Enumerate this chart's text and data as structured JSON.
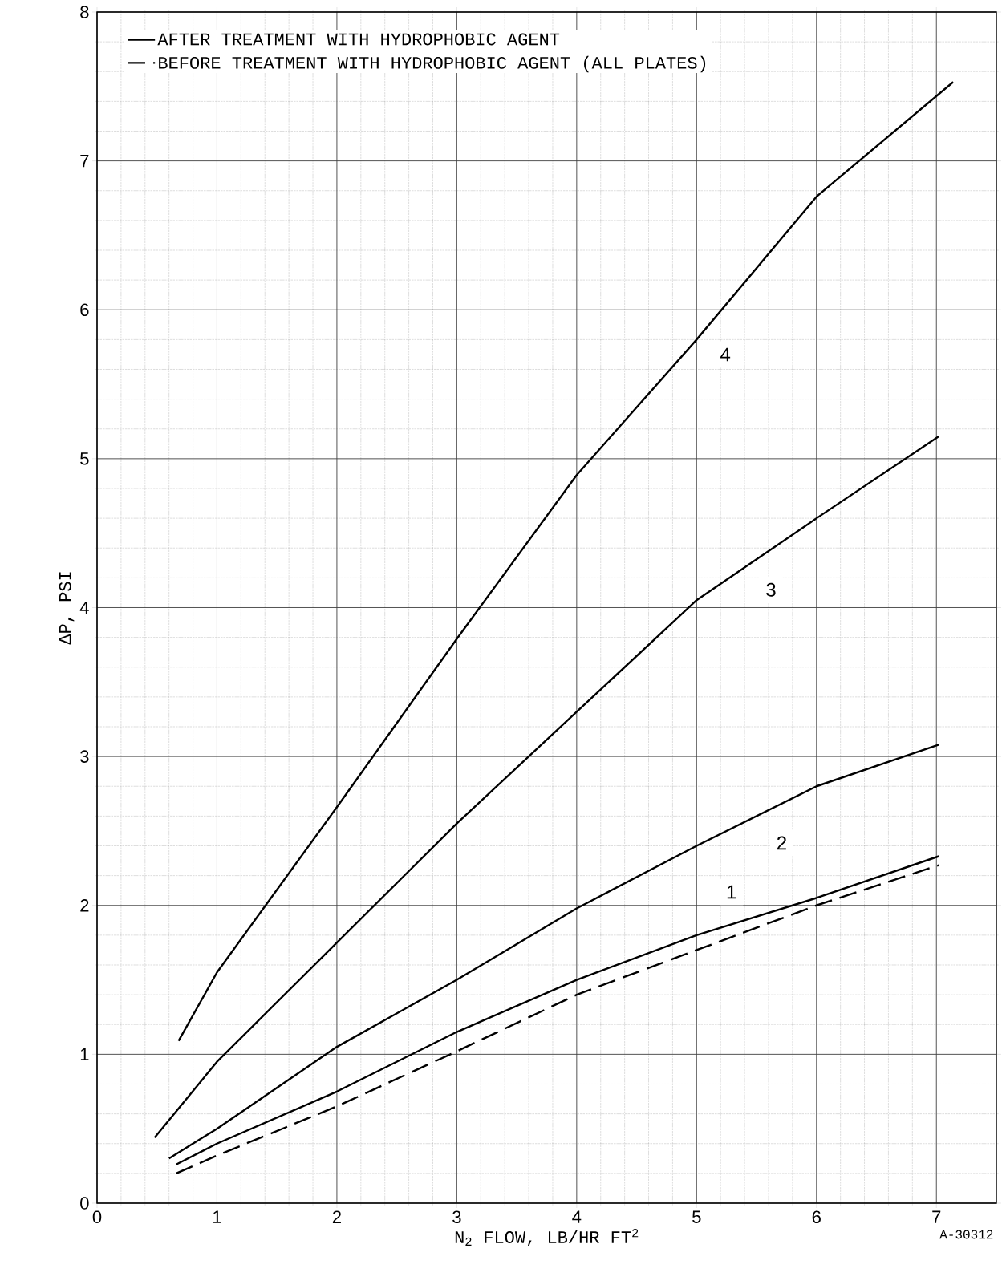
{
  "chart_data": {
    "type": "line",
    "xlabel": "N$_{2}$ FLOW, LB/HR FT$^{2}$",
    "ylabel": "ΔP, PSI",
    "xlim": [
      0,
      7.5
    ],
    "ylim": [
      0,
      8
    ],
    "xticks": [
      0,
      1,
      2,
      3,
      4,
      5,
      6,
      7
    ],
    "yticks": [
      0,
      1,
      2,
      3,
      4,
      5,
      6,
      7,
      8
    ],
    "grid": true,
    "legend": "top left",
    "marker": "none",
    "series": [
      {
        "name": "AFTER TREATMENT WITH HYDROPHOBIC AGENT",
        "color": "#000000",
        "line_style": "solid",
        "x": [
          0.66,
          1,
          2,
          3,
          4,
          5,
          6,
          7.02
        ],
        "values": [
          0.26,
          0.4,
          0.75,
          1.15,
          1.5,
          1.8,
          2.05,
          2.33
        ]
      },
      {
        "color": "#000000",
        "line_style": "solid",
        "x": [
          0.6,
          1,
          2,
          3,
          4,
          5,
          6,
          7.02
        ],
        "values": [
          0.3,
          0.5,
          1.05,
          1.5,
          1.98,
          2.4,
          2.8,
          3.08
        ]
      },
      {
        "color": "#000000",
        "line_style": "solid",
        "x": [
          0.48,
          1,
          2,
          3,
          4,
          5,
          6,
          7.02
        ],
        "values": [
          0.44,
          0.95,
          1.75,
          2.55,
          3.3,
          4.05,
          4.6,
          5.15
        ]
      },
      {
        "color": "#000000",
        "line_style": "solid",
        "x": [
          0.68,
          1,
          2,
          3,
          4,
          5,
          6,
          7.14
        ],
        "values": [
          1.09,
          1.55,
          2.66,
          3.79,
          4.89,
          5.8,
          6.76,
          7.53
        ]
      },
      {
        "name": "BEFORE TREATMENT WITH HYDROPHOBIC AGENT (ALL PLATES)",
        "color": "#000000",
        "line_style": "dashed",
        "x": [
          0.66,
          1,
          2,
          3,
          4,
          5,
          6,
          7.02
        ],
        "values": [
          0.2,
          0.32,
          0.65,
          1.02,
          1.4,
          1.7,
          2.0,
          2.27
        ]
      }
    ],
    "annotations": [
      {
        "text": "1",
        "x": 5.29,
        "y": 2.09
      },
      {
        "text": "2",
        "x": 5.71,
        "y": 2.42
      },
      {
        "text": "3",
        "x": 5.62,
        "y": 4.12
      },
      {
        "text": "4",
        "x": 5.24,
        "y": 5.7
      },
      "A-30312"
    ]
  }
}
